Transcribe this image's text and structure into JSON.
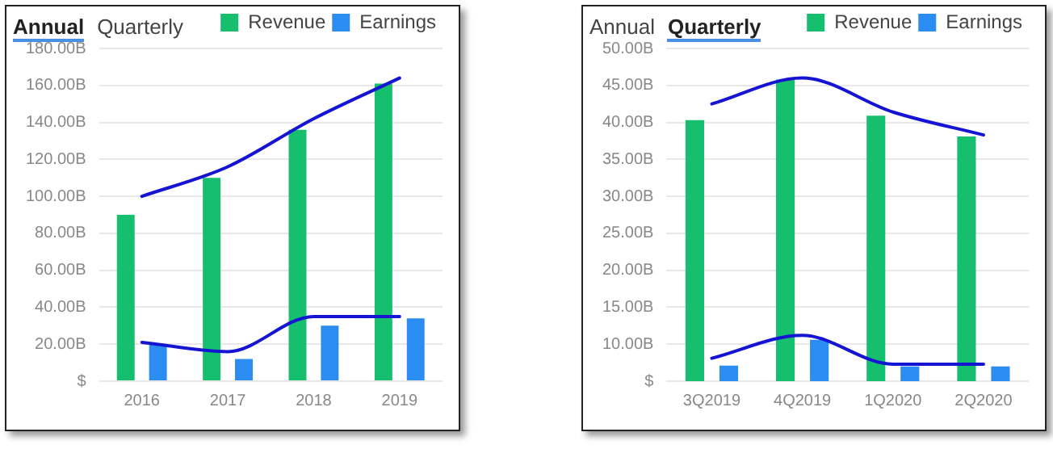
{
  "chart_data": [
    {
      "type": "bar",
      "annotations": [
        "Annual",
        "Quarterly"
      ],
      "categories": [
        "2016",
        "2017",
        "2018",
        "2019"
      ],
      "series": [
        {
          "name": "Revenue",
          "color": "#16bf6e",
          "values": [
            90,
            110,
            136,
            161
          ]
        },
        {
          "name": "Earnings",
          "color": "#2b8df2",
          "values": [
            20,
            12,
            30,
            34
          ]
        },
        {
          "type": "line",
          "color": "#1414d2",
          "values": [
            100,
            116,
            142,
            164
          ]
        },
        {
          "type": "line",
          "color": "#1414d2",
          "values": [
            21,
            16,
            35,
            35
          ]
        }
      ],
      "ylim": [
        0,
        180
      ],
      "yticks": [
        {
          "value": 0,
          "label": "$"
        },
        {
          "value": 20,
          "label": "20.00B"
        },
        {
          "value": 40,
          "label": "40.00B"
        },
        {
          "value": 60,
          "label": "60.00B"
        },
        {
          "value": 80,
          "label": "80.00B"
        },
        {
          "value": 100,
          "label": "100.00B"
        },
        {
          "value": 120,
          "label": "120.00B"
        },
        {
          "value": 140,
          "label": "140.00B"
        },
        {
          "value": 160,
          "label": "160.00B"
        },
        {
          "value": 180,
          "label": "180.00B"
        }
      ],
      "grid": "y",
      "legend": "top right",
      "marker": "none"
    },
    {
      "type": "bar",
      "annotations": [
        "Annual",
        "Quarterly"
      ],
      "categories": [
        "3Q2019",
        "4Q2019",
        "1Q2020",
        "2Q2020"
      ],
      "series": [
        {
          "name": "Revenue",
          "color": "#16bf6e",
          "values": [
            40.3,
            45.8,
            40.9,
            38.1
          ]
        },
        {
          "name": "Earnings",
          "color": "#2b8df2",
          "values": [
            7.1,
            10.6,
            7,
            7
          ]
        },
        {
          "type": "line",
          "color": "#1414d2",
          "values": [
            42.5,
            46,
            41.4,
            38.3
          ]
        },
        {
          "type": "line",
          "color": "#1414d2",
          "values": [
            8.1,
            11.2,
            7.3,
            7.3
          ]
        }
      ],
      "ylim": [
        5,
        50
      ],
      "yticks": [
        {
          "value": 5,
          "label": "$"
        },
        {
          "value": 10,
          "label": "10.00B"
        },
        {
          "value": 15,
          "label": "15.00B"
        },
        {
          "value": 20,
          "label": "20.00B"
        },
        {
          "value": 25,
          "label": "25.00B"
        },
        {
          "value": 30,
          "label": "30.00B"
        },
        {
          "value": 35,
          "label": "35.00B"
        },
        {
          "value": 40,
          "label": "40.00B"
        },
        {
          "value": 45,
          "label": "45.00B"
        },
        {
          "value": 50,
          "label": "50.00B"
        }
      ],
      "grid": "y",
      "legend": "top right",
      "marker": "none"
    }
  ]
}
